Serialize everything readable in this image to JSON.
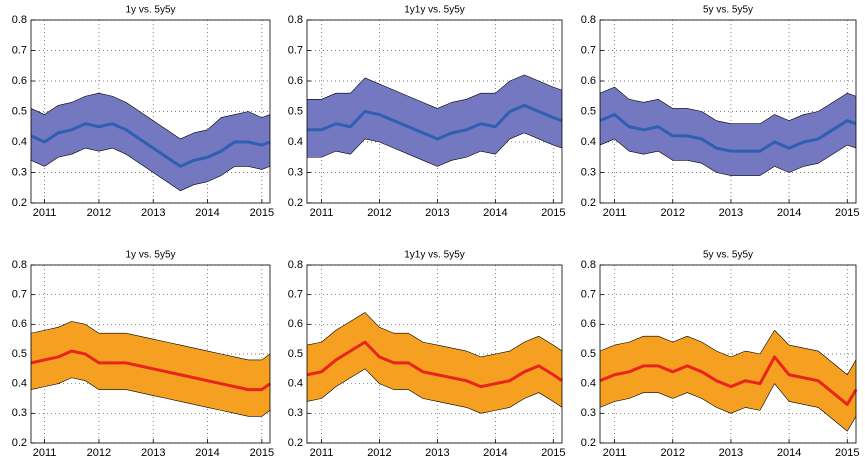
{
  "chart_data": [
    {
      "type": "line",
      "title": "1y vs. 5y5y",
      "x": [
        2010.75,
        2011,
        2011.25,
        2011.5,
        2011.75,
        2012,
        2012.25,
        2012.5,
        2012.75,
        2013,
        2013.25,
        2013.5,
        2013.75,
        2014,
        2014.25,
        2014.5,
        2014.75,
        2015,
        2015.15
      ],
      "band_color": "#7478c0",
      "series": [
        {
          "color": "#000000",
          "values": [
            0.34,
            0.32,
            0.35,
            0.36,
            0.38,
            0.37,
            0.38,
            0.36,
            0.33,
            0.3,
            0.27,
            0.24,
            0.26,
            0.27,
            0.29,
            0.32,
            0.32,
            0.31,
            0.32
          ]
        },
        {
          "color": "#000000",
          "values": [
            0.51,
            0.49,
            0.52,
            0.53,
            0.55,
            0.56,
            0.55,
            0.53,
            0.5,
            0.47,
            0.44,
            0.41,
            0.43,
            0.44,
            0.48,
            0.49,
            0.5,
            0.48,
            0.49
          ]
        },
        {
          "color": "#2e5fb3",
          "values": [
            0.42,
            0.4,
            0.43,
            0.44,
            0.46,
            0.45,
            0.46,
            0.44,
            0.41,
            0.38,
            0.35,
            0.32,
            0.34,
            0.35,
            0.37,
            0.4,
            0.4,
            0.39,
            0.4
          ]
        }
      ],
      "xlim": [
        2010.75,
        2015.15
      ],
      "xticks": [
        2011,
        2012,
        2013,
        2014,
        2015
      ],
      "ylim": [
        0.2,
        0.8
      ],
      "yticks": [
        0.2,
        0.3,
        0.4,
        0.5,
        0.6,
        0.7,
        0.8
      ],
      "grid": true
    },
    {
      "type": "line",
      "title": "1y1y vs. 5y5y",
      "x": [
        2010.75,
        2011,
        2011.25,
        2011.5,
        2011.75,
        2012,
        2012.25,
        2012.5,
        2012.75,
        2013,
        2013.25,
        2013.5,
        2013.75,
        2014,
        2014.25,
        2014.5,
        2014.75,
        2015,
        2015.15
      ],
      "band_color": "#7478c0",
      "series": [
        {
          "color": "#000000",
          "values": [
            0.35,
            0.35,
            0.37,
            0.36,
            0.41,
            0.4,
            0.38,
            0.36,
            0.34,
            0.32,
            0.34,
            0.35,
            0.37,
            0.36,
            0.41,
            0.43,
            0.41,
            0.39,
            0.38
          ]
        },
        {
          "color": "#000000",
          "values": [
            0.54,
            0.54,
            0.56,
            0.56,
            0.61,
            0.59,
            0.57,
            0.55,
            0.53,
            0.51,
            0.53,
            0.54,
            0.56,
            0.56,
            0.6,
            0.62,
            0.6,
            0.58,
            0.57
          ]
        },
        {
          "color": "#2e5fb3",
          "values": [
            0.44,
            0.44,
            0.46,
            0.45,
            0.5,
            0.49,
            0.47,
            0.45,
            0.43,
            0.41,
            0.43,
            0.44,
            0.46,
            0.45,
            0.5,
            0.52,
            0.5,
            0.48,
            0.47
          ]
        }
      ],
      "xlim": [
        2010.75,
        2015.15
      ],
      "xticks": [
        2011,
        2012,
        2013,
        2014,
        2015
      ],
      "ylim": [
        0.2,
        0.8
      ],
      "yticks": [
        0.2,
        0.3,
        0.4,
        0.5,
        0.6,
        0.7,
        0.8
      ],
      "grid": true
    },
    {
      "type": "line",
      "title": "5y vs. 5y5y",
      "x": [
        2010.75,
        2011,
        2011.25,
        2011.5,
        2011.75,
        2012,
        2012.25,
        2012.5,
        2012.75,
        2013,
        2013.25,
        2013.5,
        2013.75,
        2014,
        2014.25,
        2014.5,
        2014.75,
        2015,
        2015.15
      ],
      "band_color": "#7478c0",
      "series": [
        {
          "color": "#000000",
          "values": [
            0.39,
            0.41,
            0.37,
            0.36,
            0.37,
            0.34,
            0.34,
            0.33,
            0.3,
            0.29,
            0.29,
            0.29,
            0.32,
            0.3,
            0.32,
            0.33,
            0.36,
            0.39,
            0.38
          ]
        },
        {
          "color": "#000000",
          "values": [
            0.56,
            0.58,
            0.54,
            0.53,
            0.54,
            0.51,
            0.51,
            0.5,
            0.47,
            0.46,
            0.46,
            0.46,
            0.49,
            0.47,
            0.49,
            0.5,
            0.53,
            0.56,
            0.55
          ]
        },
        {
          "color": "#2e5fb3",
          "values": [
            0.47,
            0.49,
            0.45,
            0.44,
            0.45,
            0.42,
            0.42,
            0.41,
            0.38,
            0.37,
            0.37,
            0.37,
            0.4,
            0.38,
            0.4,
            0.41,
            0.44,
            0.47,
            0.46
          ]
        }
      ],
      "xlim": [
        2010.75,
        2015.15
      ],
      "xticks": [
        2011,
        2012,
        2013,
        2014,
        2015
      ],
      "ylim": [
        0.2,
        0.8
      ],
      "yticks": [
        0.2,
        0.3,
        0.4,
        0.5,
        0.6,
        0.7,
        0.8
      ],
      "grid": true
    },
    {
      "type": "line",
      "title": "1y vs. 5y5y",
      "x": [
        2010.75,
        2011,
        2011.25,
        2011.5,
        2011.75,
        2012,
        2012.25,
        2012.5,
        2012.75,
        2013,
        2013.25,
        2013.5,
        2013.75,
        2014,
        2014.25,
        2014.5,
        2014.75,
        2015,
        2015.15
      ],
      "band_color": "#f5a020",
      "series": [
        {
          "color": "#000000",
          "values": [
            0.38,
            0.39,
            0.4,
            0.42,
            0.41,
            0.38,
            0.38,
            0.38,
            0.37,
            0.36,
            0.35,
            0.34,
            0.33,
            0.32,
            0.31,
            0.3,
            0.29,
            0.29,
            0.31
          ]
        },
        {
          "color": "#000000",
          "values": [
            0.57,
            0.58,
            0.59,
            0.61,
            0.6,
            0.57,
            0.57,
            0.57,
            0.56,
            0.55,
            0.54,
            0.53,
            0.52,
            0.51,
            0.5,
            0.49,
            0.48,
            0.48,
            0.5
          ]
        },
        {
          "color": "#e8251c",
          "values": [
            0.47,
            0.48,
            0.49,
            0.51,
            0.5,
            0.47,
            0.47,
            0.47,
            0.46,
            0.45,
            0.44,
            0.43,
            0.42,
            0.41,
            0.4,
            0.39,
            0.38,
            0.38,
            0.4
          ]
        }
      ],
      "xlim": [
        2010.75,
        2015.15
      ],
      "xticks": [
        2011,
        2012,
        2013,
        2014,
        2015
      ],
      "ylim": [
        0.2,
        0.8
      ],
      "yticks": [
        0.2,
        0.3,
        0.4,
        0.5,
        0.6,
        0.7,
        0.8
      ],
      "grid": true
    },
    {
      "type": "line",
      "title": "1y1y vs. 5y5y",
      "x": [
        2010.75,
        2011,
        2011.25,
        2011.5,
        2011.75,
        2012,
        2012.25,
        2012.5,
        2012.75,
        2013,
        2013.25,
        2013.5,
        2013.75,
        2014,
        2014.25,
        2014.5,
        2014.75,
        2015,
        2015.15
      ],
      "band_color": "#f5a020",
      "series": [
        {
          "color": "#000000",
          "values": [
            0.34,
            0.35,
            0.39,
            0.42,
            0.45,
            0.4,
            0.38,
            0.38,
            0.35,
            0.34,
            0.33,
            0.32,
            0.3,
            0.31,
            0.32,
            0.35,
            0.37,
            0.34,
            0.32
          ]
        },
        {
          "color": "#000000",
          "values": [
            0.53,
            0.54,
            0.58,
            0.61,
            0.64,
            0.59,
            0.57,
            0.57,
            0.54,
            0.53,
            0.52,
            0.51,
            0.49,
            0.5,
            0.51,
            0.54,
            0.56,
            0.53,
            0.51
          ]
        },
        {
          "color": "#e8251c",
          "values": [
            0.43,
            0.44,
            0.48,
            0.51,
            0.54,
            0.49,
            0.47,
            0.47,
            0.44,
            0.43,
            0.42,
            0.41,
            0.39,
            0.4,
            0.41,
            0.44,
            0.46,
            0.43,
            0.41
          ]
        }
      ],
      "xlim": [
        2010.75,
        2015.15
      ],
      "xticks": [
        2011,
        2012,
        2013,
        2014,
        2015
      ],
      "ylim": [
        0.2,
        0.8
      ],
      "yticks": [
        0.2,
        0.3,
        0.4,
        0.5,
        0.6,
        0.7,
        0.8
      ],
      "grid": true
    },
    {
      "type": "line",
      "title": "5y vs. 5y5y",
      "x": [
        2010.75,
        2011,
        2011.25,
        2011.5,
        2011.75,
        2012,
        2012.25,
        2012.5,
        2012.75,
        2013,
        2013.25,
        2013.5,
        2013.75,
        2014,
        2014.25,
        2014.5,
        2014.75,
        2015,
        2015.15
      ],
      "band_color": "#f5a020",
      "series": [
        {
          "color": "#000000",
          "values": [
            0.32,
            0.34,
            0.35,
            0.37,
            0.37,
            0.35,
            0.37,
            0.35,
            0.32,
            0.3,
            0.32,
            0.31,
            0.4,
            0.34,
            0.33,
            0.32,
            0.28,
            0.24,
            0.29
          ]
        },
        {
          "color": "#000000",
          "values": [
            0.51,
            0.53,
            0.54,
            0.56,
            0.56,
            0.54,
            0.56,
            0.54,
            0.51,
            0.49,
            0.51,
            0.5,
            0.58,
            0.53,
            0.52,
            0.51,
            0.47,
            0.43,
            0.48
          ]
        },
        {
          "color": "#e8251c",
          "values": [
            0.41,
            0.43,
            0.44,
            0.46,
            0.46,
            0.44,
            0.46,
            0.44,
            0.41,
            0.39,
            0.41,
            0.4,
            0.49,
            0.43,
            0.42,
            0.41,
            0.37,
            0.33,
            0.38
          ]
        }
      ],
      "xlim": [
        2010.75,
        2015.15
      ],
      "xticks": [
        2011,
        2012,
        2013,
        2014,
        2015
      ],
      "ylim": [
        0.2,
        0.8
      ],
      "yticks": [
        0.2,
        0.3,
        0.4,
        0.5,
        0.6,
        0.7,
        0.8
      ],
      "grid": true
    }
  ]
}
